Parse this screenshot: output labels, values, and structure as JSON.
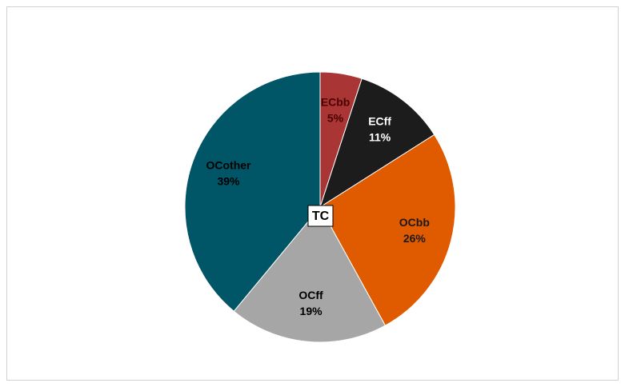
{
  "chart_data": {
    "type": "pie",
    "title": "TC",
    "categories": [
      "ECbb",
      "ECff",
      "OCbb",
      "OCff",
      "OCother"
    ],
    "values": [
      5,
      11,
      26,
      19,
      39
    ],
    "value_labels": [
      "5%",
      "11%",
      "26%",
      "19%",
      "39%"
    ],
    "colors": [
      "#a93535",
      "#1c1c1c",
      "#e05a00",
      "#a6a6a6",
      "#005566"
    ],
    "label_colors": [
      "#4a0000",
      "#ffffff",
      "#1a1a1a",
      "#000000",
      "#000000"
    ]
  }
}
